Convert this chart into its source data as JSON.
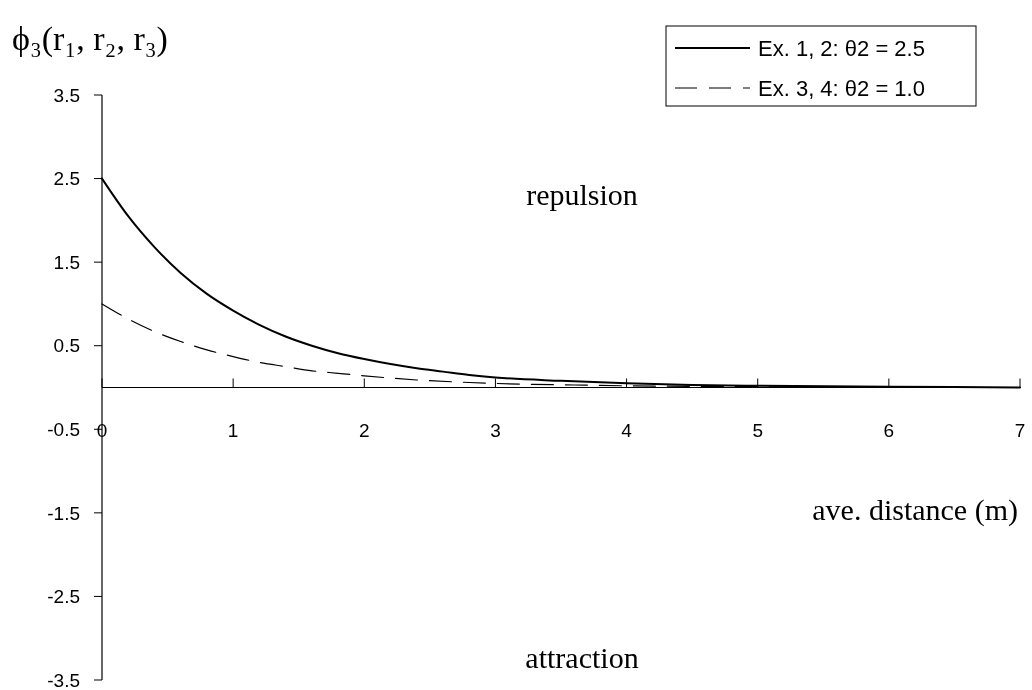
{
  "chart_data": {
    "type": "line",
    "ylabel": "ϕ₃(r₁, r₂, r₃)",
    "xlabel": "ave. distance (m)",
    "annotations": [
      "repulsion",
      "attraction"
    ],
    "xlim": [
      0,
      7
    ],
    "xticks": [
      0,
      1,
      2,
      3,
      4,
      5,
      6,
      7
    ],
    "ylim": [
      -3.5,
      3.5
    ],
    "yticks": [
      -3.5,
      -2.5,
      -1.5,
      -0.5,
      0.5,
      1.5,
      2.5,
      3.5
    ],
    "grid": false,
    "legend": "top right",
    "marker": "none",
    "series": [
      {
        "name": "Ex. 1, 2: θ2 = 2.5",
        "color": "#000000",
        "line_style": "solid",
        "x": [
          0,
          0.2,
          0.4,
          0.6,
          0.8,
          1,
          1.2,
          1.4,
          1.6,
          1.8,
          2,
          2.2,
          2.4,
          2.6,
          2.8,
          3,
          3.5,
          4,
          4.5,
          5,
          6,
          7
        ],
        "values": [
          2.5,
          2.05,
          1.68,
          1.37,
          1.12,
          0.92,
          0.75,
          0.61,
          0.5,
          0.41,
          0.34,
          0.28,
          0.23,
          0.19,
          0.15,
          0.12,
          0.08,
          0.05,
          0.03,
          0.02,
          0.01,
          0
        ]
      },
      {
        "name": "Ex. 3, 4: θ2 = 1.0",
        "color": "#000000",
        "line_style": "dashed",
        "x": [
          0,
          0.2,
          0.4,
          0.6,
          0.8,
          1,
          1.2,
          1.4,
          1.6,
          1.8,
          2,
          2.4,
          2.8,
          3.2,
          3.6,
          4,
          5,
          6,
          7
        ],
        "values": [
          1,
          0.82,
          0.67,
          0.55,
          0.45,
          0.37,
          0.3,
          0.25,
          0.2,
          0.17,
          0.14,
          0.09,
          0.06,
          0.04,
          0.03,
          0.02,
          0.01,
          0,
          0
        ]
      }
    ]
  }
}
